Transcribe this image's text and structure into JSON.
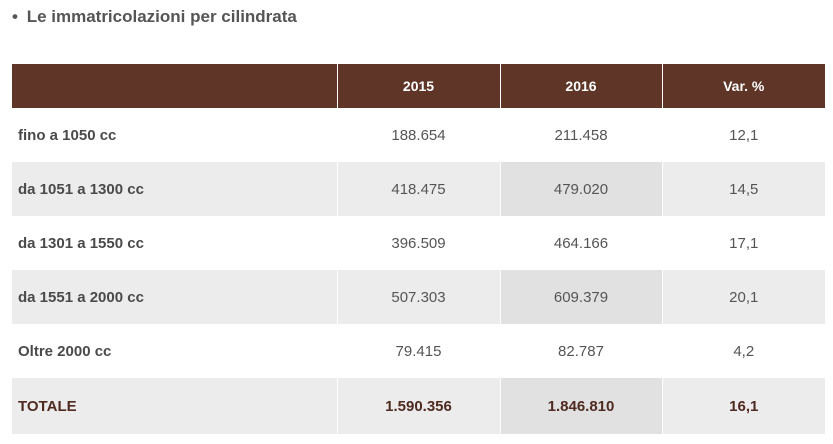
{
  "title": {
    "bullet": "•",
    "text": "Le immatricolazioni per cilindrata"
  },
  "table": {
    "headers": [
      "",
      "2015",
      "2016",
      "Var. %"
    ],
    "rows": [
      {
        "label": "fino a 1050 cc",
        "y2015": "188.654",
        "y2016": "211.458",
        "var": "12,1"
      },
      {
        "label": "da 1051 a 1300 cc",
        "y2015": "418.475",
        "y2016": "479.020",
        "var": "14,5"
      },
      {
        "label": "da 1301 a 1550 cc",
        "y2015": "396.509",
        "y2016": "464.166",
        "var": "17,1"
      },
      {
        "label": "da 1551 a 2000 cc",
        "y2015": "507.303",
        "y2016": "609.379",
        "var": "20,1"
      },
      {
        "label": "Oltre 2000 cc",
        "y2015": "79.415",
        "y2016": "82.787",
        "var": "4,2"
      }
    ],
    "total": {
      "label": "TOTALE",
      "y2015": "1.590.356",
      "y2016": "1.846.810",
      "var": "16,1"
    }
  },
  "colors": {
    "header_bg": "#5e3527",
    "header_text": "#ffffff",
    "stripe": "#ececec",
    "stripe_highlight": "#e1e1e1",
    "total_text": "#4e2a20",
    "body_text": "#555555"
  }
}
